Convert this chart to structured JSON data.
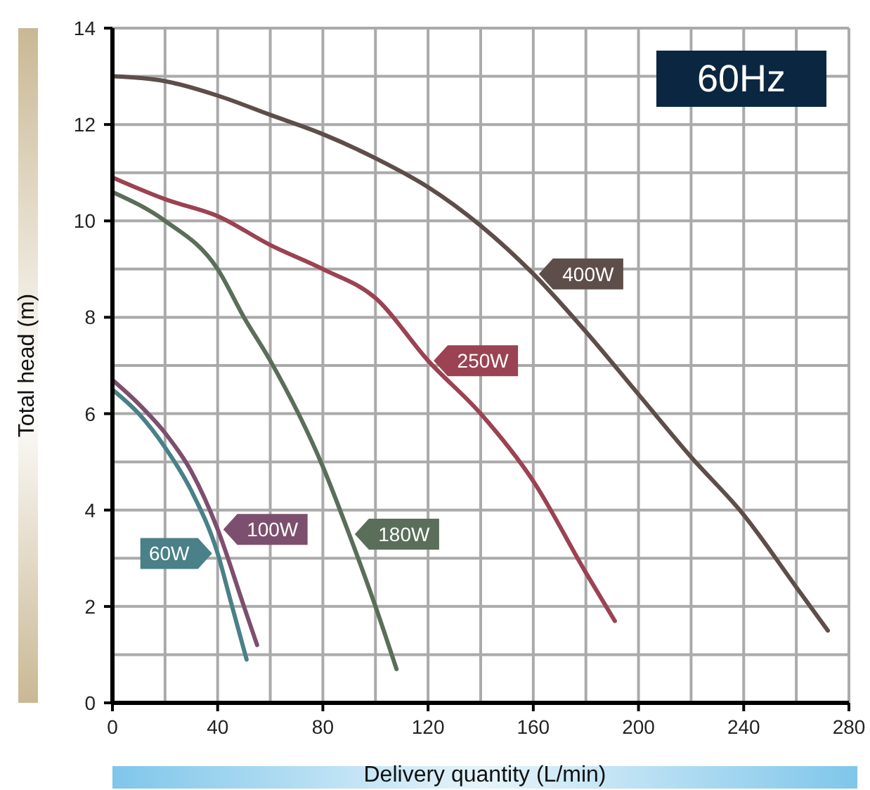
{
  "chart_data": {
    "type": "line",
    "xlabel": "Delivery quantity (L/min)",
    "ylabel": "Total head (m)",
    "annotations": [
      "60Hz"
    ],
    "xlim": [
      0,
      280
    ],
    "ylim": [
      0,
      14
    ],
    "xticks": [
      0,
      {
        "value": 20,
        "label": null
      },
      40,
      {
        "value": 60,
        "label": null
      },
      80,
      {
        "value": 100,
        "label": null
      },
      120,
      {
        "value": 140,
        "label": null
      },
      160,
      {
        "value": 180,
        "label": null
      },
      200,
      {
        "value": 220,
        "label": null
      },
      240,
      {
        "value": 260,
        "label": null
      },
      280
    ],
    "yticks": [
      0,
      {
        "value": 1,
        "label": null
      },
      2,
      {
        "value": 3,
        "label": null
      },
      4,
      {
        "value": 5,
        "label": null
      },
      6,
      {
        "value": 7,
        "label": null
      },
      8,
      {
        "value": 9,
        "label": null
      },
      10,
      {
        "value": 11,
        "label": null
      },
      12,
      {
        "value": 13,
        "label": null
      },
      14
    ],
    "grid": true,
    "marker": "none",
    "line_style": "solid",
    "series": [
      {
        "name": "400W",
        "color": "#5e4e4a",
        "x": [
          0,
          20,
          40,
          60,
          80,
          100,
          120,
          140,
          160,
          180,
          200,
          220,
          240,
          260,
          272
        ],
        "values": [
          13,
          12.9,
          12.6,
          12.2,
          11.8,
          11.3,
          10.7,
          9.9,
          8.9,
          7.7,
          6.4,
          5.1,
          3.9,
          2.4,
          1.5
        ]
      },
      {
        "name": "250W",
        "color": "#9b4352",
        "x": [
          0,
          20,
          40,
          60,
          80,
          100,
          120,
          140,
          160,
          180,
          191
        ],
        "values": [
          10.9,
          10.45,
          10.1,
          9.5,
          9.0,
          8.4,
          7.1,
          6.0,
          4.6,
          2.7,
          1.7
        ]
      },
      {
        "name": "180W",
        "color": "#5a6e5a",
        "x": [
          0,
          20,
          40,
          50,
          60,
          80,
          90,
          100,
          108
        ],
        "values": [
          10.6,
          10.0,
          9.0,
          8.0,
          7.1,
          4.9,
          3.5,
          2.0,
          0.7
        ]
      },
      {
        "name": "100W",
        "color": "#7d4f6e",
        "x": [
          0,
          10,
          20,
          30,
          40,
          50,
          55
        ],
        "values": [
          6.7,
          6.2,
          5.6,
          4.8,
          3.6,
          2.0,
          1.2
        ]
      },
      {
        "name": "60W",
        "color": "#4a8088",
        "x": [
          0,
          10,
          20,
          30,
          40,
          45,
          51
        ],
        "values": [
          6.5,
          6.0,
          5.3,
          4.4,
          3.1,
          2.1,
          0.9
        ]
      }
    ]
  }
}
